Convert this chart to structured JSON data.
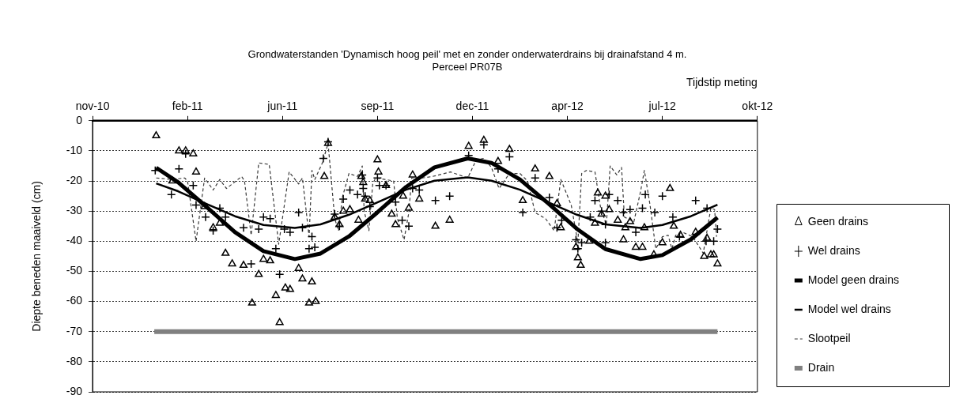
{
  "chart_data": {
    "type": "scatter",
    "title": "Grondwaterstanden 'Dynamisch hoog peil' met en zonder onderwaterdrains bij drainafstand 4 m.",
    "subtitle": "Perceel PR07B",
    "xlabel": "Tijdstip meting",
    "ylabel": "Diepte beneden maaiveld (cm)",
    "xlim": [
      "2010-11-19",
      "2012-10-19"
    ],
    "xticks": [
      {
        "value": "2010-11-19",
        "label": "nov-10"
      },
      {
        "value": "2011-02-27",
        "label": "feb-11"
      },
      {
        "value": "2011-06-07",
        "label": "jun-11"
      },
      {
        "value": "2011-09-15",
        "label": "sep-11"
      },
      {
        "value": "2011-12-24",
        "label": "dec-11"
      },
      {
        "value": "2012-04-02",
        "label": "apr-12"
      },
      {
        "value": "2012-07-11",
        "label": "jul-12"
      },
      {
        "value": "2012-10-19",
        "label": "okt-12"
      }
    ],
    "ylim": [
      -90,
      0
    ],
    "yticks": [
      0,
      -10,
      -20,
      -30,
      -40,
      -50,
      -60,
      -70,
      -80,
      -90
    ],
    "grid": "y",
    "legend": "right",
    "series": [
      {
        "name": "Geen drains",
        "type": "scatter",
        "marker": "triangle",
        "color": "#000000",
        "x": [
          "2011-01-25",
          "2011-02-11",
          "2011-02-18",
          "2011-02-25",
          "2011-03-05",
          "2011-03-08",
          "2011-03-17",
          "2011-03-26",
          "2011-04-02",
          "2011-04-08",
          "2011-04-15",
          "2011-04-27",
          "2011-05-06",
          "2011-05-13",
          "2011-05-18",
          "2011-05-25",
          "2011-05-31",
          "2011-06-04",
          "2011-06-10",
          "2011-06-15",
          "2011-06-24",
          "2011-06-28",
          "2011-07-05",
          "2011-07-08",
          "2011-07-12",
          "2011-07-21",
          "2011-07-25",
          "2011-08-01",
          "2011-08-06",
          "2011-08-10",
          "2011-08-17",
          "2011-08-26",
          "2011-08-29",
          "2011-08-31",
          "2011-09-02",
          "2011-09-07",
          "2011-09-15",
          "2011-09-16",
          "2011-09-24",
          "2011-09-30",
          "2011-10-04",
          "2011-10-12",
          "2011-10-18",
          "2011-10-22",
          "2011-10-29",
          "2011-11-15",
          "2011-11-30",
          "2011-12-20",
          "2012-01-05",
          "2012-01-20",
          "2012-02-01",
          "2012-02-15",
          "2012-02-28",
          "2012-03-14",
          "2012-03-22",
          "2012-03-26",
          "2012-04-11",
          "2012-04-13",
          "2012-04-16",
          "2012-04-25",
          "2012-05-01",
          "2012-05-04",
          "2012-05-08",
          "2012-05-12",
          "2012-05-16",
          "2012-05-25",
          "2012-05-31",
          "2012-06-02",
          "2012-06-07",
          "2012-06-13",
          "2012-06-20",
          "2012-06-22",
          "2012-07-02",
          "2012-07-11",
          "2012-07-19",
          "2012-07-23",
          "2012-07-30",
          "2012-08-15",
          "2012-08-24",
          "2012-08-27",
          "2012-08-31",
          "2012-09-03",
          "2012-09-07"
        ],
        "values": [
          -5,
          -20,
          -10,
          -10,
          -11,
          -17,
          -28.5,
          -35.5,
          -34,
          -44,
          -47.5,
          -48,
          -60.5,
          -51,
          -46,
          -46.5,
          -58,
          -67,
          -55.5,
          -56,
          -49,
          -52.5,
          -60.5,
          -53.5,
          -60,
          -18.5,
          -7.5,
          -32,
          -34.5,
          -30,
          -29.5,
          -33,
          -18.5,
          -20.5,
          -26,
          -26.5,
          -13,
          -17,
          -21.5,
          -31,
          -34.5,
          -25,
          -29,
          -18,
          -26,
          -35,
          -33,
          -8.5,
          -6.5,
          -13.5,
          -9.5,
          -26.5,
          -16,
          -18.5,
          -27.5,
          -35.5,
          -42,
          -45.5,
          -48,
          -40,
          -34,
          -24,
          -31,
          -25,
          -29.5,
          -33,
          -39.5,
          -35.5,
          -33.5,
          -42,
          -42,
          -35.5,
          -44.5,
          -40.5,
          -22.5,
          -35,
          -38,
          -37,
          -45,
          -39,
          -44.5,
          -44.5,
          -47.5
        ]
      },
      {
        "name": "Wel drains",
        "type": "scatter",
        "marker": "cross",
        "color": "#000000",
        "x": [
          "2011-01-24",
          "2011-02-10",
          "2011-02-18",
          "2011-02-25",
          "2011-03-05",
          "2011-03-08",
          "2011-03-18",
          "2011-03-26",
          "2011-04-02",
          "2011-04-08",
          "2011-04-27",
          "2011-05-05",
          "2011-05-13",
          "2011-05-18",
          "2011-05-25",
          "2011-05-31",
          "2011-06-04",
          "2011-06-09",
          "2011-06-15",
          "2011-06-24",
          "2011-06-28",
          "2011-07-05",
          "2011-07-08",
          "2011-07-11",
          "2011-07-20",
          "2011-07-25",
          "2011-08-01",
          "2011-08-06",
          "2011-08-10",
          "2011-08-17",
          "2011-08-25",
          "2011-08-30",
          "2011-08-31",
          "2011-09-02",
          "2011-09-07",
          "2011-09-15",
          "2011-09-17",
          "2011-09-24",
          "2011-10-04",
          "2011-10-11",
          "2011-10-18",
          "2011-10-22",
          "2011-10-29",
          "2011-11-15",
          "2011-11-30",
          "2011-12-20",
          "2012-01-05",
          "2012-01-20",
          "2012-02-01",
          "2012-02-15",
          "2012-02-28",
          "2012-03-14",
          "2012-03-22",
          "2012-03-27",
          "2012-04-11",
          "2012-04-13",
          "2012-04-17",
          "2012-04-26",
          "2012-05-01",
          "2012-05-08",
          "2012-05-12",
          "2012-05-12",
          "2012-05-16",
          "2012-05-25",
          "2012-05-31",
          "2012-06-07",
          "2012-06-13",
          "2012-06-20",
          "2012-06-23",
          "2012-07-03",
          "2012-07-11",
          "2012-07-22",
          "2012-07-29",
          "2012-08-15",
          "2012-08-26",
          "2012-08-27",
          "2012-09-03",
          "2012-09-07"
        ],
        "values": [
          -16.5,
          -24.5,
          -16,
          -11,
          -21.5,
          -28,
          -32,
          -36.5,
          -29,
          -32,
          -35.5,
          -47.5,
          -36,
          -32,
          -32.5,
          -42.5,
          -51,
          -36,
          -37,
          -30.5,
          -35.5,
          -42.5,
          -38.5,
          -42,
          -12.5,
          -7,
          -31,
          -35,
          -26,
          -23,
          -24.5,
          -18,
          -22.5,
          -25,
          -28.5,
          -19,
          -21.5,
          -21.5,
          -27,
          -33,
          -35,
          -22.5,
          -23,
          -26.5,
          -25,
          -11.5,
          -8,
          -16,
          -12,
          -30.5,
          -19,
          -25.5,
          -35.5,
          -33,
          -39.5,
          -42.5,
          -40.5,
          -32,
          -26.5,
          -30,
          -34.5,
          -40.5,
          -24.5,
          -26.5,
          -30.5,
          -29.5,
          -37,
          -29,
          -24.5,
          -30.5,
          -25,
          -32,
          -38.5,
          -26.5,
          -40,
          -29,
          -40,
          -36
        ]
      },
      {
        "name": "Model geen drains",
        "type": "line",
        "marker": "none",
        "line_style": "solid",
        "color": "#000000",
        "x": [
          "2011-01-25",
          "2011-02-17",
          "2011-03-19",
          "2011-04-18",
          "2011-05-18",
          "2011-06-20",
          "2011-07-17",
          "2011-08-16",
          "2011-09-15",
          "2011-10-15",
          "2011-11-14",
          "2011-12-19",
          "2012-01-13",
          "2012-02-12",
          "2012-03-13",
          "2012-04-12",
          "2012-05-12",
          "2012-06-18",
          "2012-07-11",
          "2012-08-10",
          "2012-09-07"
        ],
        "values": [
          -15.6,
          -20.4,
          -28.6,
          -37,
          -43.3,
          -45.9,
          -44.1,
          -38.4,
          -30.4,
          -22,
          -15.5,
          -12.5,
          -14,
          -19.5,
          -27.5,
          -35.9,
          -42.6,
          -45.9,
          -44.6,
          -39.4,
          -32.1
        ]
      },
      {
        "name": "Model wel drains",
        "type": "line",
        "marker": "none",
        "line_style": "solid",
        "color": "#000000",
        "x": [
          "2011-01-25",
          "2011-02-17",
          "2011-03-19",
          "2011-04-18",
          "2011-05-18",
          "2011-06-20",
          "2011-07-17",
          "2011-08-16",
          "2011-09-15",
          "2011-10-15",
          "2011-11-14",
          "2011-12-19",
          "2012-01-13",
          "2012-02-12",
          "2012-03-13",
          "2012-04-12",
          "2012-05-12",
          "2012-06-18",
          "2012-07-11",
          "2012-08-10",
          "2012-09-07"
        ],
        "values": [
          -20.8,
          -23.4,
          -27.6,
          -31.7,
          -34.6,
          -35.6,
          -34.4,
          -31.2,
          -27.1,
          -22.9,
          -19.9,
          -18.8,
          -19.9,
          -22.9,
          -27.1,
          -31.2,
          -34.4,
          -35.6,
          -34.6,
          -31.7,
          -27.9
        ]
      },
      {
        "name": "Slootpeil",
        "type": "line",
        "marker": "none",
        "line_style": "dashed",
        "color": "#3a3a3a",
        "x": [
          "2011-01-25",
          "2011-02-11",
          "2011-02-24",
          "2011-02-27",
          "2011-03-08",
          "2011-03-17",
          "2011-03-26",
          "2011-04-02",
          "2011-04-09",
          "2011-04-25",
          "2011-04-28",
          "2011-05-05",
          "2011-05-13",
          "2011-05-24",
          "2011-06-03",
          "2011-06-14",
          "2011-06-24",
          "2011-06-28",
          "2011-07-05",
          "2011-07-08",
          "2011-07-11",
          "2011-07-19",
          "2011-07-25",
          "2011-08-01",
          "2011-08-05",
          "2011-08-09",
          "2011-08-16",
          "2011-08-25",
          "2011-08-30",
          "2011-09-01",
          "2011-09-06",
          "2011-09-10",
          "2011-09-13",
          "2011-09-23",
          "2011-10-02",
          "2011-10-06",
          "2011-10-13",
          "2011-10-18",
          "2011-10-21",
          "2011-11-01",
          "2011-11-12",
          "2011-12-01",
          "2011-12-19",
          "2011-12-28",
          "2012-01-05",
          "2012-01-13",
          "2012-01-21",
          "2012-02-01",
          "2012-02-12",
          "2012-02-20",
          "2012-02-28",
          "2012-03-10",
          "2012-03-19",
          "2012-03-26",
          "2012-04-06",
          "2012-04-13",
          "2012-04-17",
          "2012-04-22",
          "2012-05-01",
          "2012-05-07",
          "2012-05-13",
          "2012-05-17",
          "2012-05-24",
          "2012-05-29",
          "2012-06-01",
          "2012-06-11",
          "2012-06-18",
          "2012-06-22",
          "2012-06-28",
          "2012-07-04",
          "2012-07-11",
          "2012-07-17",
          "2012-07-21",
          "2012-07-25",
          "2012-08-01",
          "2012-08-12",
          "2012-08-23",
          "2012-08-31",
          "2012-09-04",
          "2012-09-06"
        ],
        "values": [
          -19,
          -19.5,
          -19,
          -20,
          -40,
          -19,
          -23,
          -19.5,
          -22.5,
          -18.5,
          -20,
          -38,
          -14,
          -14.5,
          -41,
          -17,
          -21,
          -19,
          -38.5,
          -16.5,
          -19.5,
          -14,
          -7.5,
          -32.5,
          -36.5,
          -25.5,
          -17.5,
          -18.5,
          -15,
          -30,
          -36.5,
          -21,
          -19,
          -19.5,
          -20,
          -32.5,
          -39.5,
          -30.5,
          -19,
          -19,
          -18.5,
          -17,
          -19,
          -13,
          -12.5,
          -15.5,
          -22.5,
          -17.5,
          -17.5,
          -20,
          -30.5,
          -32.5,
          -36.5,
          -19.5,
          -28,
          -40.5,
          -17.5,
          -16.5,
          -17,
          -29,
          -34.5,
          -15,
          -18,
          -15.5,
          -32,
          -33.5,
          -23.5,
          -16.5,
          -28,
          -42.5,
          -38.5,
          -38,
          -42.5,
          -38,
          -37,
          -38.5,
          -44,
          -29,
          -29.5,
          -38.5
        ]
      },
      {
        "name": "Drain",
        "type": "line",
        "marker": "none",
        "line_style": "solid",
        "color": "#808080",
        "x": [
          "2011-01-23",
          "2012-09-07"
        ],
        "values": [
          -70,
          -70
        ]
      }
    ]
  }
}
